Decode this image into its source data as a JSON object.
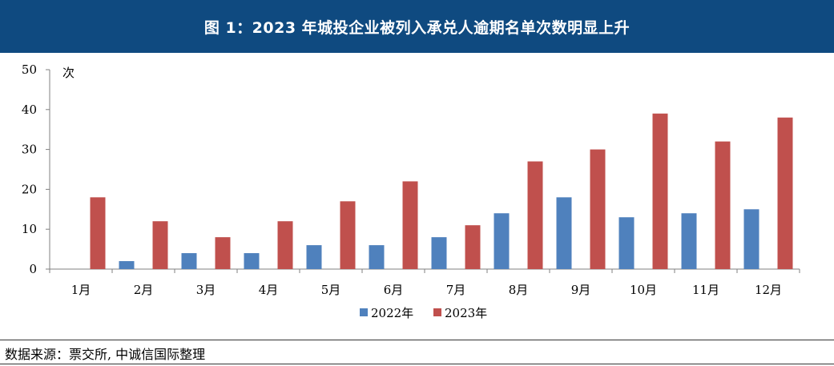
{
  "header": {
    "title": "图 1：2023 年城投企业被列入承兑人逾期名单次数明显上升"
  },
  "colors": {
    "header_bg": "#0f4a80",
    "series_2022": "#4f81bd",
    "series_2023": "#c0504d"
  },
  "chart_data": {
    "type": "bar",
    "categories": [
      "1月",
      "2月",
      "3月",
      "4月",
      "5月",
      "6月",
      "7月",
      "8月",
      "9月",
      "10月",
      "11月",
      "12月"
    ],
    "series": [
      {
        "name": "2022年",
        "values": [
          0,
          2,
          4,
          4,
          6,
          6,
          8,
          14,
          18,
          13,
          14,
          15
        ]
      },
      {
        "name": "2023年",
        "values": [
          18,
          12,
          8,
          12,
          17,
          22,
          11,
          27,
          30,
          39,
          32,
          38
        ]
      }
    ],
    "ylabel": "次",
    "ylim": [
      0,
      50
    ],
    "yticks": [
      0,
      10,
      20,
      30,
      40,
      50
    ],
    "legend_position": "bottom-center",
    "grid": false
  },
  "footer": {
    "source": "数据来源：票交所, 中诚信国际整理"
  }
}
